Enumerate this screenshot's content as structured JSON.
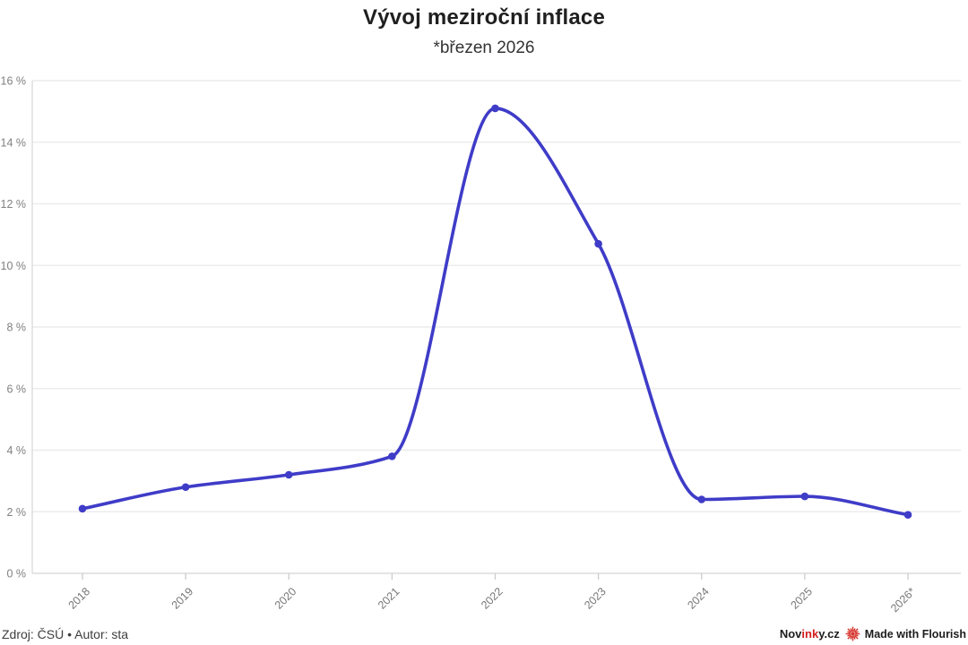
{
  "header": {
    "title": "Vývoj meziroční inflace",
    "subtitle": "*březen 2026"
  },
  "chart_data": {
    "type": "line",
    "title": "Vývoj meziroční inflace",
    "subtitle": "*březen 2026",
    "x": [
      "2018",
      "2019",
      "2020",
      "2021",
      "2022",
      "2023",
      "2024",
      "2025",
      "2026*"
    ],
    "values": [
      2.1,
      2.8,
      3.2,
      3.8,
      15.1,
      10.7,
      2.4,
      2.5,
      1.9
    ],
    "unit": "%",
    "ylim": [
      0,
      16
    ],
    "y_tick_values": [
      0,
      2,
      4,
      6,
      8,
      10,
      12,
      14,
      16
    ],
    "y_tick_labels": [
      "0 %",
      "2 %",
      "4 %",
      "6 %",
      "8 %",
      "10 %",
      "12 %",
      "14 %",
      "16 %"
    ],
    "xlabel": "",
    "ylabel": "",
    "grid": true,
    "legend": "none",
    "curve": "smooth",
    "line_color": "#3f3cc8",
    "marker_color": "#3f3cc8",
    "grid_color": "#ececec",
    "axis_color": "#dcdcdc",
    "tick_color": "#cccccc",
    "tick_label_color": "#808080"
  },
  "footer": {
    "source": "Zdroj: ČSÚ • Autor: sta",
    "brand": {
      "prefix": "Nov",
      "highlight": "ink",
      "suffix": "y.cz",
      "highlight_color": "#d21e1e",
      "text_color": "#1c1c1c"
    },
    "made_with": "Made with Flourish",
    "flourish_icon_color": "#d6342c"
  }
}
